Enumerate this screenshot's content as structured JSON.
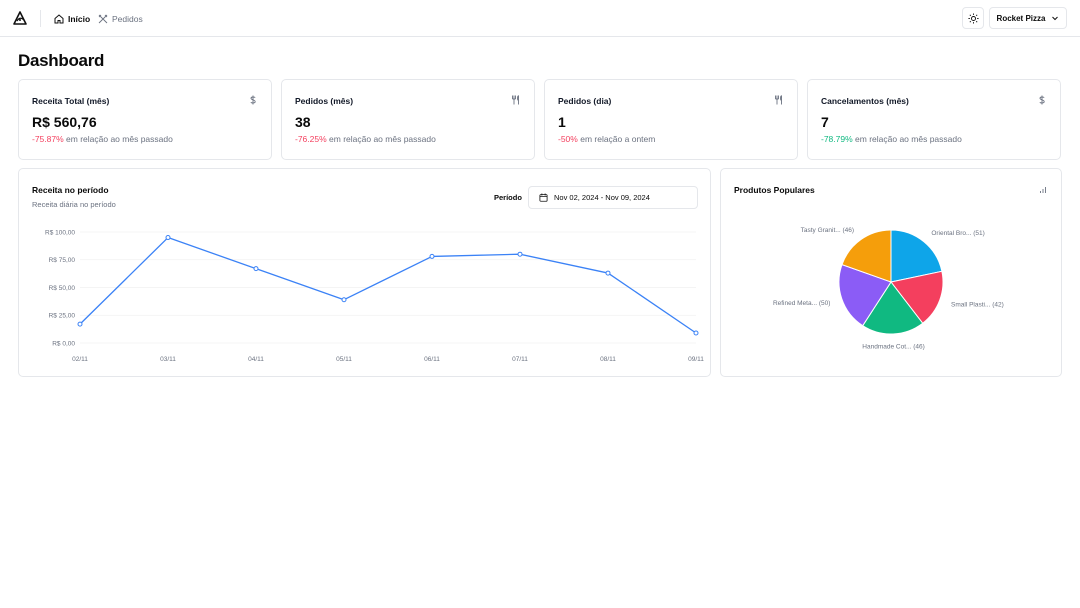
{
  "header": {
    "nav": [
      {
        "label": "Início",
        "icon": "home-icon",
        "active": true
      },
      {
        "label": "Pedidos",
        "icon": "utensils-crossed-icon",
        "active": false
      }
    ],
    "theme_icon": "sun-icon",
    "store_name": "Rocket Pizza",
    "store_icon": "chevron-down-icon"
  },
  "page": {
    "title": "Dashboard"
  },
  "metrics": [
    {
      "title": "Receita Total (mês)",
      "icon": "dollar-icon",
      "value": "R$ 560,76",
      "diff": "-75.87%",
      "diff_text": "em relação ao mês passado",
      "trend": "negative"
    },
    {
      "title": "Pedidos (mês)",
      "icon": "utensils-icon",
      "value": "38",
      "diff": "-76.25%",
      "diff_text": "em relação ao mês passado",
      "trend": "negative"
    },
    {
      "title": "Pedidos (dia)",
      "icon": "utensils-icon",
      "value": "1",
      "diff": "-50%",
      "diff_text": "em relação a ontem",
      "trend": "negative"
    },
    {
      "title": "Cancelamentos (mês)",
      "icon": "dollar-icon",
      "value": "7",
      "diff": "-78.79%",
      "diff_text": "em relação ao mês passado",
      "trend": "positive"
    }
  ],
  "revenue": {
    "title": "Receita no período",
    "subtitle": "Receita diária no período",
    "period_label": "Período",
    "date_range": "Nov 02, 2024 - Nov 09, 2024",
    "date_icon": "calendar-icon"
  },
  "popular": {
    "title": "Produtos Populares",
    "icon": "bar-chart-icon"
  },
  "colors": {
    "line": "#3b82f6",
    "negative": "#f43f5e",
    "positive": "#10b981",
    "pie": [
      "#0ea5e9",
      "#f43f5e",
      "#10b981",
      "#8b5cf6",
      "#f59e0b"
    ]
  },
  "chart_data": [
    {
      "type": "line",
      "x": [
        "02/11",
        "03/11",
        "04/11",
        "05/11",
        "06/11",
        "07/11",
        "08/11",
        "09/11"
      ],
      "values": [
        17,
        95,
        67,
        39,
        78,
        80,
        63,
        9
      ],
      "ylim": [
        0,
        100
      ],
      "yticks": [
        "R$ 0,00",
        "R$ 25,00",
        "R$ 50,00",
        "R$ 75,00",
        "R$ 100,00"
      ],
      "grid": true
    },
    {
      "type": "pie",
      "labels": [
        "Oriental Bro... (51)",
        "Small Plasti... (42)",
        "Handmade Cot... (46)",
        "Refined Meta... (50)",
        "Tasty Granit... (46)"
      ],
      "values": [
        51,
        42,
        46,
        50,
        46
      ]
    }
  ]
}
